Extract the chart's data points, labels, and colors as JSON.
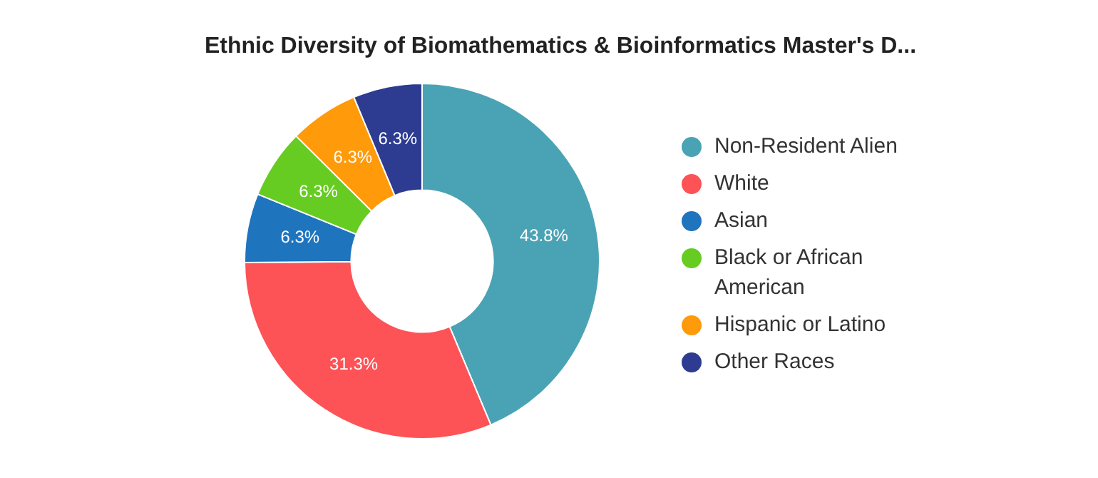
{
  "chart_data": {
    "type": "donut",
    "title": "Ethnic Diversity of Biomathematics & Bioinformatics Master's D...",
    "categories": [
      "Non-Resident Alien",
      "White",
      "Asian",
      "Black or African American",
      "Hispanic or Latino",
      "Other Races"
    ],
    "values": [
      43.8,
      31.3,
      6.3,
      6.3,
      6.3,
      6.3
    ],
    "colors": [
      "#4aa3b5",
      "#fd5256",
      "#1f74be",
      "#66cc22",
      "#ff9a0a",
      "#2d3b91"
    ],
    "value_labels": [
      "43.8%",
      "31.3%",
      "6.3%",
      "6.3%",
      "6.3%",
      "6.3%"
    ],
    "legend": "right"
  }
}
